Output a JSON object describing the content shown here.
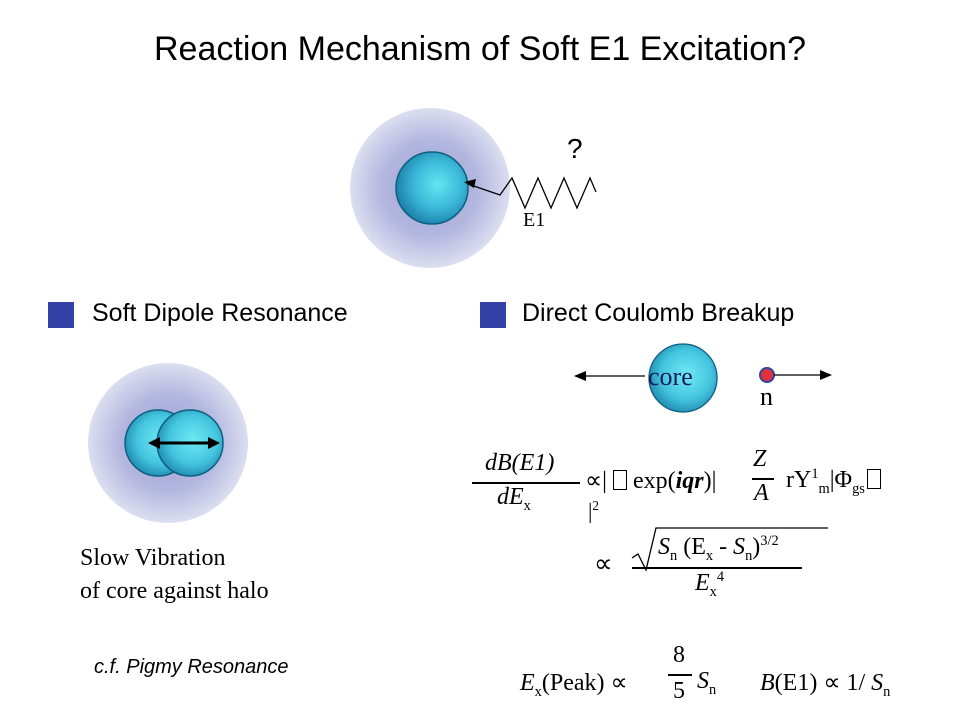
{
  "slide": {
    "title": "Reaction Mechanism of Soft E1 Excitation?"
  },
  "top_diagram": {
    "question_mark": "?",
    "e1_label": "E1",
    "colors": {
      "halo": "#c7c9e6",
      "core_edge": "#0e6f94",
      "core_center": "#5fe3f0",
      "arrow": "#000000"
    }
  },
  "bullets": [
    {
      "label": "Soft Dipole Resonance",
      "color": "#3341a6"
    },
    {
      "label": "Direct Coulomb Breakup",
      "color": "#3341a6"
    }
  ],
  "left_panel": {
    "caption_line1": "Slow Vibration",
    "caption_line2": "of core against halo",
    "cf_note": "c.f. Pigmy Resonance"
  },
  "right_panel": {
    "core_label": "core",
    "neutron_label": "n",
    "neutron_color": "#e0323c"
  },
  "equations": {
    "eq1_num": "dB(E1)",
    "eq1_den": "dE",
    "eq1_den_sub": "x",
    "eq1_prop": "∝|",
    "eq1_box": "",
    "eq1_exp": "exp(",
    "eq1_iqr": "iqr",
    "eq1_close": ")",
    "eq1_Z": "Z",
    "eq1_A": "A",
    "eq1_rY": "rY",
    "eq1_rY_sup": "1",
    "eq1_rY_sub": "m",
    "eq1_phi": "|Φ",
    "eq1_phi_sub": "gs",
    "eq1_end_box": "",
    "eq1_sq": "|",
    "eq1_sq_sup": "2",
    "eq2_prop": "∝",
    "eq2_num_S": "S",
    "eq2_num_S_sub": "n",
    "eq2_num_paren": "(E",
    "eq2_num_x": "x",
    "eq2_num_minus": " - S",
    "eq2_num_n": "n",
    "eq2_num_close": ")",
    "eq2_num_pow": "3/2",
    "eq2_den_E": "E",
    "eq2_den_x": "x",
    "eq2_den_pow": "4",
    "eq3_E": "E",
    "eq3_x": "x",
    "eq3_peak": "(Peak)",
    "eq3_prop": "∝",
    "eq3_frac_num": "8",
    "eq3_frac_den": "5",
    "eq3_S": "S",
    "eq3_S_sub": "n",
    "eq4_B": "B",
    "eq4_E1": "(E1)",
    "eq4_prop": "∝",
    "eq4_rest": "1/",
    "eq4_S": "S",
    "eq4_S_sub": "n"
  }
}
